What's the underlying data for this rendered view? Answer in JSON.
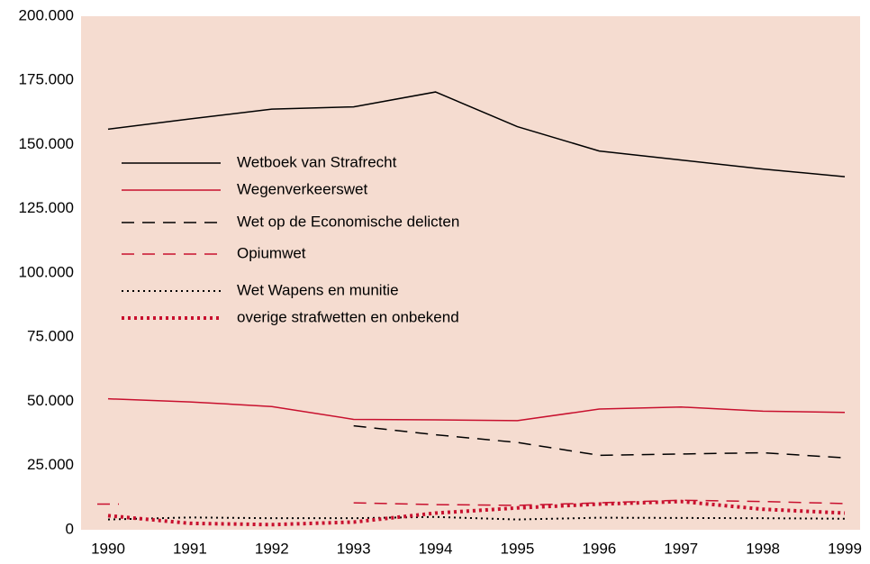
{
  "chart_data": {
    "type": "line",
    "categories": [
      "1990",
      "1991",
      "1992",
      "1993",
      "1994",
      "1995",
      "1996",
      "1997",
      "1998",
      "1999"
    ],
    "series": [
      {
        "name": "Wetboek van Strafrecht",
        "color": "#000000",
        "style": "solid",
        "values": [
          156000,
          160000,
          163800,
          164700,
          170500,
          157000,
          147500,
          144000,
          140500,
          137500
        ]
      },
      {
        "name": "Wegenverkeerswet",
        "color": "#c8102e",
        "style": "solid",
        "values": [
          51000,
          49800,
          48000,
          43000,
          42800,
          42500,
          47000,
          47800,
          46200,
          45700
        ]
      },
      {
        "name": "Wet op de Economische delicten",
        "color": "#000000",
        "style": "dashed",
        "values": [
          null,
          null,
          null,
          40500,
          37000,
          34000,
          29000,
          29500,
          30000,
          28000
        ]
      },
      {
        "name": "Opiumwet",
        "color": "#c8102e",
        "style": "dashed",
        "values": [
          10000,
          null,
          null,
          10500,
          9800,
          9500,
          10500,
          11500,
          11000,
          10200
        ]
      },
      {
        "name": "Wet Wapens en munitie",
        "color": "#000000",
        "style": "dotted",
        "values": [
          4000,
          4800,
          4500,
          4500,
          5000,
          4000,
          4700,
          4600,
          4500,
          4300
        ]
      },
      {
        "name": "overige strafwetten en onbekend",
        "color": "#c8102e",
        "style": "dotted-bold",
        "values": [
          5500,
          2500,
          2000,
          3000,
          6500,
          8500,
          10000,
          11000,
          8000,
          6500
        ]
      }
    ],
    "ylim": [
      0,
      200000
    ],
    "yticks": [
      0,
      {
        "value": 25000,
        "label": "25.000"
      },
      {
        "value": 50000,
        "label": "50.000"
      },
      {
        "value": 75000,
        "label": "75.000"
      },
      {
        "value": 100000,
        "label": "100.000"
      },
      {
        "value": 125000,
        "label": "125.000"
      },
      {
        "value": 150000,
        "label": "150.000"
      },
      {
        "value": 175000,
        "label": "175.000"
      },
      {
        "value": 200000,
        "label": "200.000"
      }
    ],
    "background": "#f5dcd0"
  }
}
